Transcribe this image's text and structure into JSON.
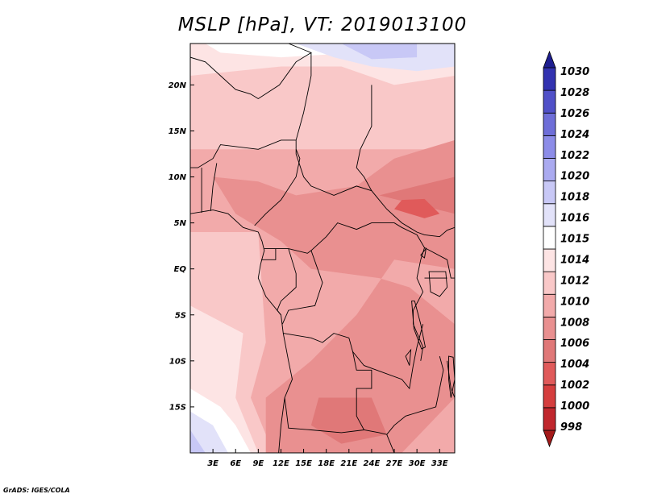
{
  "chart_data": {
    "type": "heatmap",
    "title": "MSLP [hPa], VT: 2019013100",
    "variable": "MSLP",
    "units": "hPa",
    "valid_time": "2019013100",
    "xlim": [
      0,
      35
    ],
    "ylim": [
      -20,
      24.5
    ],
    "x_ticks": [
      3,
      6,
      9,
      12,
      15,
      18,
      21,
      24,
      27,
      30,
      33
    ],
    "x_tick_labels": [
      "3E",
      "6E",
      "9E",
      "12E",
      "15E",
      "18E",
      "21E",
      "24E",
      "27E",
      "30E",
      "33E"
    ],
    "y_ticks": [
      20,
      15,
      10,
      5,
      0,
      -5,
      -10,
      -15
    ],
    "y_tick_labels": [
      "20N",
      "15N",
      "10N",
      "5N",
      "EQ",
      "5S",
      "10S",
      "15S"
    ],
    "colorbar": {
      "levels": [
        998,
        1000,
        1002,
        1004,
        1006,
        1008,
        1010,
        1012,
        1014,
        1015,
        1016,
        1018,
        1020,
        1022,
        1024,
        1026,
        1028,
        1030
      ],
      "labels": [
        "998",
        "1000",
        "1002",
        "1004",
        "1006",
        "1008",
        "1010",
        "1012",
        "1014",
        "1015",
        "1016",
        "1018",
        "1020",
        "1022",
        "1024",
        "1026",
        "1028",
        "1030"
      ],
      "colors": [
        "#a31919",
        "#c0272d",
        "#d53e3e",
        "#e05a5a",
        "#e07878",
        "#e99090",
        "#f2aaaa",
        "#f9c8c8",
        "#fde4e4",
        "#ffffff",
        "#e2e2f9",
        "#c8c8f6",
        "#aaaaf0",
        "#8c8ce8",
        "#6e6ed8",
        "#5050c8",
        "#3232b0",
        "#1e1e90"
      ]
    },
    "grid": false
  },
  "credit": "GrADS: IGES/COLA"
}
